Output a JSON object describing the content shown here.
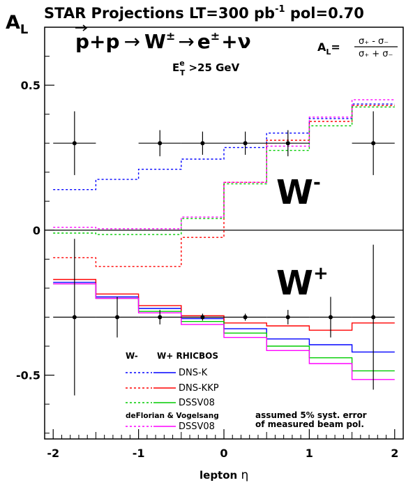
{
  "header": {
    "title_main": "STAR  Projections  LT=300 pb",
    "title_exp": "-1",
    "title_tail": "  pol=0.70",
    "ylabel_main": "A",
    "ylabel_sub": "L"
  },
  "annotations": {
    "reaction_p1": "p",
    "reaction_plus": "+p",
    "reaction_arrow": "→",
    "reaction_w": "W",
    "reaction_w_sup": "±",
    "reaction_arrow2": "→",
    "reaction_e": "e",
    "reaction_e_sup": "±",
    "reaction_nu": "+ν",
    "cut_e": "E",
    "cut_sup": "e",
    "cut_sub": "T",
    "cut_tail": " >25 GeV",
    "formula_lhs": "A",
    "formula_lhs_sub": "L",
    "formula_eq": "=",
    "formula_num": "σ₊ - σ₋",
    "formula_den": "σ₊ + σ₋",
    "wminus_label": "W",
    "wminus_sup": "-",
    "wplus_label": "W",
    "wplus_sup": "+",
    "syst_line1": "assumed 5% syst. error",
    "syst_line2": "of measured beam pol."
  },
  "legend": {
    "header_wminus": "W-",
    "header_wplus": "W+ RHICBOS",
    "entries": [
      "DNS-K",
      "DNS-KKP",
      "DSSV08"
    ],
    "group2_header": "deFlorian & Vogelsang",
    "group2_entries": [
      "DSSV08"
    ]
  },
  "colors": {
    "dns_k": "#0000ff",
    "dns_kkp": "#ff0000",
    "dssv08": "#00cc00",
    "dssv08_dv": "#ff00ff",
    "data": "#000000"
  },
  "chart_data": {
    "type": "line",
    "xlabel_main": "lepton ",
    "xlabel_sym": "η",
    "xlim": [
      -2.1,
      2.1
    ],
    "ylim": [
      -0.72,
      0.7
    ],
    "xticks": [
      -2,
      -1,
      0,
      1,
      2
    ],
    "xtick_labels": [
      "-2",
      "-1",
      "0",
      "1",
      "2"
    ],
    "yticks": [
      -0.5,
      0,
      0.5
    ],
    "ytick_labels": [
      "-0.5",
      "0",
      "0.5"
    ],
    "bin_edges": [
      -2,
      -1.5,
      -1,
      -0.5,
      0,
      0.5,
      1,
      1.5,
      2
    ],
    "series": [
      {
        "name": "DNS-K",
        "boson": "W-",
        "style": "dashed",
        "color_key": "dns_k",
        "values": [
          0.14,
          0.175,
          0.21,
          0.245,
          0.285,
          0.335,
          0.385,
          0.435
        ]
      },
      {
        "name": "DNS-KKP",
        "boson": "W-",
        "style": "dashed",
        "color_key": "dns_kkp",
        "values": [
          -0.095,
          -0.125,
          -0.125,
          -0.025,
          0.165,
          0.31,
          0.375,
          0.43
        ]
      },
      {
        "name": "DSSV08",
        "boson": "W-",
        "style": "dashed",
        "color_key": "dssv08",
        "values": [
          -0.01,
          -0.015,
          -0.015,
          0.04,
          0.16,
          0.275,
          0.36,
          0.425
        ]
      },
      {
        "name": "DSSV08",
        "boson": "W-",
        "style": "dashed",
        "color_key": "dssv08_dv",
        "values": [
          0.01,
          0.005,
          0.005,
          0.045,
          0.165,
          0.29,
          0.39,
          0.45
        ]
      },
      {
        "name": "DNS-K",
        "boson": "W+",
        "style": "solid",
        "color_key": "dns_k",
        "values": [
          -0.18,
          -0.23,
          -0.27,
          -0.305,
          -0.34,
          -0.375,
          -0.395,
          -0.42
        ]
      },
      {
        "name": "DNS-KKP",
        "boson": "W+",
        "style": "solid",
        "color_key": "dns_kkp",
        "values": [
          -0.17,
          -0.22,
          -0.26,
          -0.295,
          -0.32,
          -0.33,
          -0.345,
          -0.32
        ]
      },
      {
        "name": "DSSV08",
        "boson": "W+",
        "style": "solid",
        "color_key": "dssv08",
        "values": [
          -0.185,
          -0.235,
          -0.28,
          -0.315,
          -0.355,
          -0.4,
          -0.44,
          -0.485
        ]
      },
      {
        "name": "DSSV08",
        "boson": "W+",
        "style": "solid",
        "color_key": "dssv08_dv",
        "values": [
          -0.185,
          -0.235,
          -0.285,
          -0.325,
          -0.37,
          -0.415,
          -0.46,
          -0.515
        ]
      }
    ],
    "points_wminus": [
      {
        "x": -1.75,
        "y": 0.3,
        "xerr": 0.25,
        "yerr": 0.11
      },
      {
        "x": -0.75,
        "y": 0.3,
        "xerr": 0.25,
        "yerr": 0.045
      },
      {
        "x": -0.25,
        "y": 0.3,
        "xerr": 0.25,
        "yerr": 0.04
      },
      {
        "x": 0.25,
        "y": 0.3,
        "xerr": 0.25,
        "yerr": 0.04
      },
      {
        "x": 0.75,
        "y": 0.3,
        "xerr": 0.25,
        "yerr": 0.045
      },
      {
        "x": 1.75,
        "y": 0.3,
        "xerr": 0.25,
        "yerr": 0.11
      }
    ],
    "points_wplus": [
      {
        "x": -1.75,
        "y": -0.3,
        "xerr": 0.25,
        "yerr": 0.27
      },
      {
        "x": -1.25,
        "y": -0.3,
        "xerr": 0.25,
        "yerr": 0.07
      },
      {
        "x": -0.75,
        "y": -0.3,
        "xerr": 0.25,
        "yerr": 0.025
      },
      {
        "x": -0.25,
        "y": -0.3,
        "xerr": 0.25,
        "yerr": 0.012
      },
      {
        "x": 0.25,
        "y": -0.3,
        "xerr": 0.25,
        "yerr": 0.012
      },
      {
        "x": 0.75,
        "y": -0.3,
        "xerr": 0.25,
        "yerr": 0.025
      },
      {
        "x": 1.25,
        "y": -0.3,
        "xerr": 0.25,
        "yerr": 0.07
      },
      {
        "x": 1.75,
        "y": -0.3,
        "xerr": 0.25,
        "yerr": 0.25
      }
    ]
  }
}
